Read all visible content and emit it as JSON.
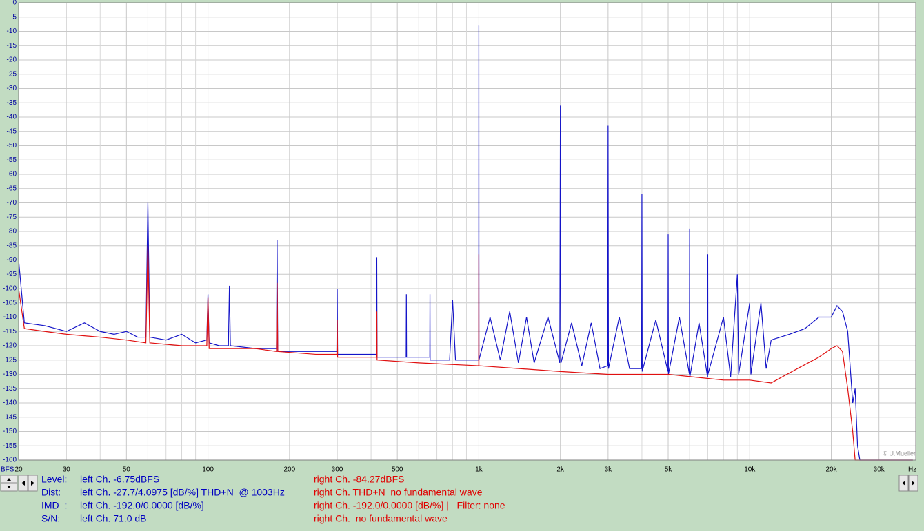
{
  "chart_data": {
    "type": "line",
    "log_x": true,
    "grid": true,
    "xlabel": "Hz",
    "ylabel": "BFS",
    "xlim": [
      20,
      41000
    ],
    "ylim": [
      -160,
      0
    ],
    "xticks": [
      20,
      30,
      50,
      100,
      200,
      300,
      500,
      {
        "value": 1000,
        "label": "1k"
      },
      {
        "value": 2000,
        "label": "2k"
      },
      {
        "value": 3000,
        "label": "3k"
      },
      {
        "value": 5000,
        "label": "5k"
      },
      {
        "value": 10000,
        "label": "10k"
      },
      {
        "value": 20000,
        "label": "20k"
      },
      {
        "value": 30000,
        "label": "30k"
      }
    ],
    "x_minor_ticks": [
      40,
      60,
      70,
      80,
      90,
      400,
      600,
      700,
      800,
      900,
      4000,
      6000,
      7000,
      8000,
      9000
    ],
    "yticks": [
      0,
      -5,
      -10,
      -15,
      -20,
      -25,
      -30,
      -35,
      -40,
      -45,
      -50,
      -55,
      -60,
      -65,
      -70,
      -75,
      -80,
      -85,
      -90,
      -95,
      -100,
      -105,
      -110,
      -115,
      -120,
      -125,
      -130,
      -135,
      -140,
      -145,
      -150,
      -155,
      -160
    ],
    "watermark": "© U.Mueller",
    "series": [
      {
        "color": "#1414c8",
        "x": [
          20,
          21,
          25,
          30,
          35,
          40,
          45,
          50,
          55,
          59,
          60,
          61,
          70,
          80,
          90,
          99,
          100,
          101,
          110,
          119,
          120,
          121,
          150,
          179,
          180,
          181,
          240,
          299,
          300,
          301,
          419,
          420,
          421,
          539,
          540,
          541,
          659,
          660,
          661,
          780,
          800,
          820,
          900,
          999,
          1000,
          1001,
          1100,
          1200,
          1300,
          1400,
          1500,
          1600,
          1800,
          1990,
          2000,
          2010,
          2200,
          2400,
          2600,
          2800,
          2990,
          3000,
          3010,
          3300,
          3600,
          3990,
          4000,
          4010,
          4500,
          4990,
          5000,
          5010,
          5500,
          5990,
          6000,
          6010,
          6500,
          6990,
          7000,
          7010,
          8000,
          8500,
          9000,
          9100,
          10000,
          10100,
          11000,
          11500,
          12000,
          14000,
          16000,
          18000,
          20000,
          21000,
          22000,
          23000,
          24000,
          24500,
          25000,
          25500,
          40000
        ],
        "values": [
          -90,
          -112,
          -113,
          -115,
          -112,
          -115,
          -116,
          -115,
          -117,
          -117,
          -70,
          -117,
          -118,
          -116,
          -119,
          -118,
          -102,
          -119,
          -120,
          -120,
          -99,
          -120,
          -121,
          -121,
          -83,
          -122,
          -122,
          -122,
          -100,
          -123,
          -123,
          -89,
          -124,
          -124,
          -102,
          -124,
          -124,
          -102,
          -125,
          -125,
          -104,
          -125,
          -125,
          -125,
          -8,
          -125,
          -110,
          -125,
          -108,
          -126,
          -110,
          -126,
          -110,
          -126,
          -36,
          -126,
          -112,
          -127,
          -112,
          -128,
          -127,
          -43,
          -128,
          -110,
          -128,
          -128,
          -67,
          -129,
          -111,
          -129,
          -81,
          -130,
          -110,
          -130,
          -79,
          -131,
          -112,
          -131,
          -88,
          -130,
          -110,
          -131,
          -95,
          -130,
          -105,
          -130,
          -105,
          -128,
          -118,
          -116,
          -114,
          -110,
          -110,
          -106,
          -108,
          -115,
          -140,
          -135,
          -155,
          -160,
          -160
        ]
      },
      {
        "color": "#e01010",
        "x": [
          20,
          21,
          25,
          30,
          40,
          50,
          59,
          60,
          61,
          80,
          99,
          100,
          101,
          150,
          179,
          180,
          181,
          250,
          299,
          300,
          301,
          419,
          420,
          421,
          600,
          999,
          1000,
          1001,
          2000,
          3000,
          5000,
          8000,
          10000,
          12000,
          15000,
          18000,
          20000,
          21000,
          22000,
          23000,
          24000,
          24500,
          40000
        ],
        "values": [
          -100,
          -114,
          -115,
          -116,
          -117,
          -118,
          -119,
          -85,
          -119,
          -120,
          -120,
          -103,
          -121,
          -121,
          -122,
          -98,
          -122,
          -123,
          -123,
          -111,
          -124,
          -124,
          -108,
          -125,
          -126,
          -127,
          -88,
          -127,
          -129,
          -130,
          -130,
          -132,
          -132,
          -133,
          -128,
          -124,
          -121,
          -120,
          -122,
          -135,
          -150,
          -160,
          -160
        ]
      }
    ]
  },
  "panel": {
    "rows": [
      {
        "label": "Level:",
        "left": "left Ch. -6.75dBFS",
        "right": "right Ch. -84.27dBFS"
      },
      {
        "label": "Dist:",
        "left": "left Ch. -27.7/4.0975 [dB/%] THD+N  @ 1003Hz",
        "right": "right Ch. THD+N  no fundamental wave"
      },
      {
        "label": "IMD  :",
        "left": "left Ch. -192.0/0.0000 [dB/%]",
        "right": "right Ch. -192.0/0.0000 [dB/%] |   Filter: none"
      },
      {
        "label": "S/N:",
        "left": "left Ch. 71.0 dB",
        "right": "right Ch.  no fundamental wave"
      }
    ]
  }
}
